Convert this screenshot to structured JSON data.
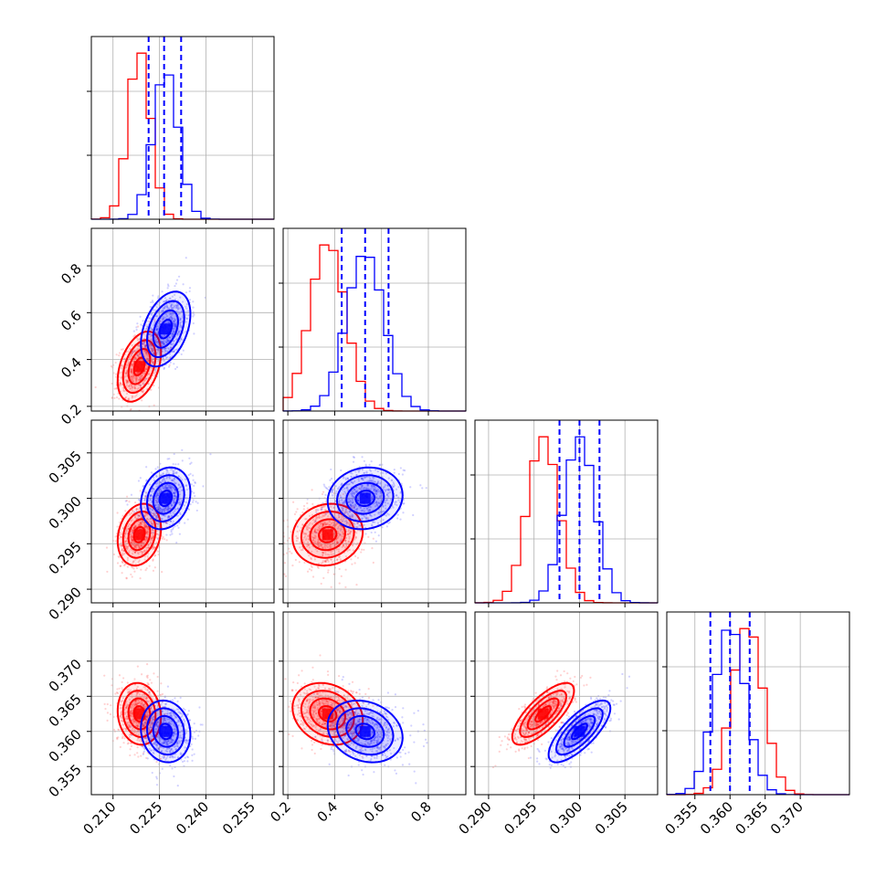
{
  "chart_data": {
    "type": "corner",
    "parameters": [
      {
        "id": "p0",
        "range": [
          0.203,
          0.262
        ],
        "ticks": [
          0.21,
          0.225,
          0.24,
          0.255
        ],
        "tick_labels": [
          "0.210",
          "0.225",
          "0.240",
          "0.255"
        ],
        "quantiles": [
          0.2215,
          0.2265,
          0.232
        ]
      },
      {
        "id": "p1",
        "range": [
          0.18,
          0.96
        ],
        "ticks": [
          0.2,
          0.4,
          0.6,
          0.8
        ],
        "tick_labels": [
          "0.2",
          "0.4",
          "0.6",
          "0.8"
        ],
        "quantiles": [
          0.43,
          0.53,
          0.63
        ]
      },
      {
        "id": "p2",
        "range": [
          0.2885,
          0.3086
        ],
        "ticks": [
          0.29,
          0.295,
          0.3,
          0.305
        ],
        "tick_labels": [
          "0.290",
          "0.295",
          "0.300",
          "0.305"
        ],
        "quantiles": [
          0.2978,
          0.3,
          0.3022
        ]
      },
      {
        "id": "p3",
        "range": [
          0.351,
          0.377
        ],
        "ticks": [
          0.355,
          0.36,
          0.365,
          0.37
        ],
        "tick_labels": [
          "0.355",
          "0.360",
          "0.365",
          "0.370"
        ],
        "quantiles": [
          0.3572,
          0.36,
          0.3628
        ]
      }
    ],
    "series": [
      {
        "color": "#ff0000",
        "mean": [
          0.2185,
          0.37,
          0.296,
          0.3625
        ],
        "std": [
          0.0035,
          0.075,
          0.0017,
          0.0022
        ],
        "correlation": [
          [
            1,
            0.4,
            0.2,
            -0.1
          ],
          [
            0.4,
            1,
            0.1,
            -0.2
          ],
          [
            0.2,
            0.1,
            1,
            0.75
          ],
          [
            -0.1,
            -0.2,
            0.75,
            1
          ]
        ]
      },
      {
        "color": "#0000ff",
        "mean": [
          0.227,
          0.53,
          0.3,
          0.36
        ],
        "std": [
          0.004,
          0.08,
          0.0017,
          0.0022
        ],
        "correlation": [
          [
            1,
            0.4,
            0.2,
            -0.1
          ],
          [
            0.4,
            1,
            0.1,
            -0.2
          ],
          [
            0.2,
            0.1,
            1,
            0.75
          ],
          [
            -0.1,
            -0.2,
            0.75,
            1
          ]
        ]
      }
    ],
    "contour_levels_sigma": [
      0.5,
      1.0,
      1.5,
      2.0
    ],
    "histogram_bins": 20,
    "quantile_line_color": "#0000ff",
    "grid": true,
    "xlabel": "",
    "ylabel": ""
  }
}
